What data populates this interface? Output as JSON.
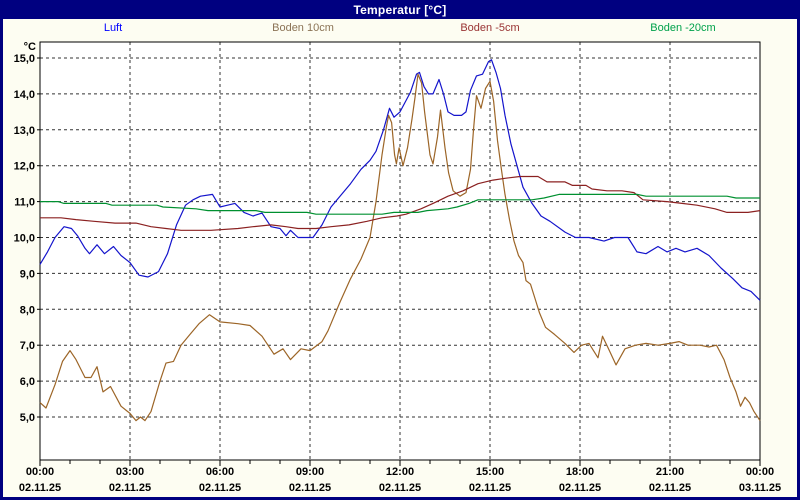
{
  "window": {
    "title": "Temperatur [°C]",
    "titlebar_bg": "#000080",
    "border_color": "#000080",
    "background": "#fdfdf2"
  },
  "chart_data": {
    "type": "line",
    "title": "Temperatur [°C]",
    "ylabel": "°C",
    "ylim": [
      3.8,
      15.45
    ],
    "xlim_hours": [
      0,
      24
    ],
    "grid": "dashed black, major every 1 °C and every 3 h, minor hourly ticks",
    "legend_position": "top",
    "y_ticks": [
      {
        "v": 15,
        "label": "15,0"
      },
      {
        "v": 14,
        "label": "14,0"
      },
      {
        "v": 13,
        "label": "13,0"
      },
      {
        "v": 12,
        "label": "12,0"
      },
      {
        "v": 11,
        "label": "11,0"
      },
      {
        "v": 10,
        "label": "10,0"
      },
      {
        "v": 9,
        "label": "9,0"
      },
      {
        "v": 8,
        "label": "8,0"
      },
      {
        "v": 7,
        "label": "7,0"
      },
      {
        "v": 6,
        "label": "6,0"
      },
      {
        "v": 5,
        "label": "5,0"
      }
    ],
    "x_ticks": [
      {
        "hour": 0,
        "time": "00:00",
        "date": "02.11.25"
      },
      {
        "hour": 3,
        "time": "03:00",
        "date": "02.11.25"
      },
      {
        "hour": 6,
        "time": "06:00",
        "date": "02.11.25"
      },
      {
        "hour": 9,
        "time": "09:00",
        "date": "02.11.25"
      },
      {
        "hour": 12,
        "time": "12:00",
        "date": "02.11.25"
      },
      {
        "hour": 15,
        "time": "15:00",
        "date": "02.11.25"
      },
      {
        "hour": 18,
        "time": "18:00",
        "date": "02.11.25"
      },
      {
        "hour": 21,
        "time": "21:00",
        "date": "02.11.25"
      },
      {
        "hour": 24,
        "time": "00:00",
        "date": "03.11.25"
      }
    ],
    "series": [
      {
        "name": "Luft",
        "color": "#1414cc",
        "label_color": "#0000ff",
        "points": [
          [
            0,
            9.25
          ],
          [
            0.25,
            9.6
          ],
          [
            0.5,
            10.0
          ],
          [
            0.8,
            10.3
          ],
          [
            1.05,
            10.25
          ],
          [
            1.25,
            10.05
          ],
          [
            1.5,
            9.7
          ],
          [
            1.65,
            9.55
          ],
          [
            1.9,
            9.8
          ],
          [
            2.15,
            9.55
          ],
          [
            2.45,
            9.75
          ],
          [
            2.7,
            9.5
          ],
          [
            3.0,
            9.3
          ],
          [
            3.3,
            8.95
          ],
          [
            3.6,
            8.9
          ],
          [
            3.95,
            9.05
          ],
          [
            4.25,
            9.55
          ],
          [
            4.55,
            10.35
          ],
          [
            4.85,
            10.9
          ],
          [
            5.1,
            11.05
          ],
          [
            5.35,
            11.15
          ],
          [
            5.75,
            11.2
          ],
          [
            6.0,
            10.85
          ],
          [
            6.25,
            10.9
          ],
          [
            6.5,
            10.95
          ],
          [
            6.8,
            10.7
          ],
          [
            7.1,
            10.6
          ],
          [
            7.4,
            10.68
          ],
          [
            7.7,
            10.3
          ],
          [
            8.0,
            10.25
          ],
          [
            8.2,
            10.05
          ],
          [
            8.35,
            10.2
          ],
          [
            8.6,
            10.0
          ],
          [
            9.1,
            10.0
          ],
          [
            9.4,
            10.35
          ],
          [
            9.7,
            10.85
          ],
          [
            10.0,
            11.15
          ],
          [
            10.35,
            11.5
          ],
          [
            10.7,
            11.9
          ],
          [
            11.0,
            12.15
          ],
          [
            11.2,
            12.4
          ],
          [
            11.45,
            13.0
          ],
          [
            11.65,
            13.6
          ],
          [
            11.8,
            13.35
          ],
          [
            12.0,
            13.5
          ],
          [
            12.35,
            14.05
          ],
          [
            12.55,
            14.55
          ],
          [
            12.65,
            14.6
          ],
          [
            12.8,
            14.2
          ],
          [
            12.95,
            14.0
          ],
          [
            13.1,
            14.0
          ],
          [
            13.3,
            14.4
          ],
          [
            13.45,
            14.0
          ],
          [
            13.6,
            13.5
          ],
          [
            13.8,
            13.4
          ],
          [
            14.05,
            13.4
          ],
          [
            14.2,
            13.5
          ],
          [
            14.35,
            14.1
          ],
          [
            14.55,
            14.5
          ],
          [
            14.75,
            14.55
          ],
          [
            14.95,
            14.9
          ],
          [
            15.05,
            14.95
          ],
          [
            15.2,
            14.6
          ],
          [
            15.35,
            14.15
          ],
          [
            15.5,
            13.4
          ],
          [
            15.7,
            12.6
          ],
          [
            15.9,
            12.0
          ],
          [
            16.1,
            11.4
          ],
          [
            16.4,
            10.95
          ],
          [
            16.7,
            10.6
          ],
          [
            17.0,
            10.45
          ],
          [
            17.5,
            10.15
          ],
          [
            17.85,
            10.0
          ],
          [
            18.3,
            10.0
          ],
          [
            18.8,
            9.9
          ],
          [
            19.15,
            10.0
          ],
          [
            19.6,
            10.0
          ],
          [
            19.9,
            9.6
          ],
          [
            20.2,
            9.55
          ],
          [
            20.6,
            9.75
          ],
          [
            20.9,
            9.6
          ],
          [
            21.2,
            9.7
          ],
          [
            21.5,
            9.6
          ],
          [
            21.9,
            9.7
          ],
          [
            22.3,
            9.5
          ],
          [
            22.7,
            9.15
          ],
          [
            23.1,
            8.85
          ],
          [
            23.4,
            8.6
          ],
          [
            23.7,
            8.5
          ],
          [
            24,
            8.25
          ]
        ]
      },
      {
        "name": "Boden 10cm",
        "color": "#9c6527",
        "label_color": "#8b7355",
        "points": [
          [
            0,
            5.4
          ],
          [
            0.2,
            5.25
          ],
          [
            0.5,
            5.9
          ],
          [
            0.75,
            6.55
          ],
          [
            1.0,
            6.85
          ],
          [
            1.2,
            6.6
          ],
          [
            1.5,
            6.1
          ],
          [
            1.7,
            6.1
          ],
          [
            1.9,
            6.4
          ],
          [
            2.1,
            5.7
          ],
          [
            2.35,
            5.85
          ],
          [
            2.7,
            5.3
          ],
          [
            3.0,
            5.1
          ],
          [
            3.2,
            4.9
          ],
          [
            3.35,
            5.0
          ],
          [
            3.5,
            4.9
          ],
          [
            3.7,
            5.15
          ],
          [
            4.0,
            6.0
          ],
          [
            4.2,
            6.5
          ],
          [
            4.45,
            6.55
          ],
          [
            4.7,
            7.0
          ],
          [
            5.0,
            7.3
          ],
          [
            5.3,
            7.6
          ],
          [
            5.65,
            7.85
          ],
          [
            6.0,
            7.65
          ],
          [
            6.6,
            7.6
          ],
          [
            7.0,
            7.55
          ],
          [
            7.4,
            7.25
          ],
          [
            7.8,
            6.75
          ],
          [
            8.1,
            6.9
          ],
          [
            8.35,
            6.6
          ],
          [
            8.7,
            6.9
          ],
          [
            9.0,
            6.85
          ],
          [
            9.4,
            7.1
          ],
          [
            9.6,
            7.4
          ],
          [
            10.0,
            8.2
          ],
          [
            10.35,
            8.85
          ],
          [
            10.7,
            9.4
          ],
          [
            11.0,
            10.0
          ],
          [
            11.2,
            11.0
          ],
          [
            11.4,
            12.3
          ],
          [
            11.55,
            13.1
          ],
          [
            11.62,
            13.4
          ],
          [
            11.72,
            13.2
          ],
          [
            11.82,
            12.3
          ],
          [
            11.88,
            12.05
          ],
          [
            11.97,
            12.5
          ],
          [
            12.1,
            12.0
          ],
          [
            12.25,
            12.5
          ],
          [
            12.4,
            13.3
          ],
          [
            12.5,
            13.9
          ],
          [
            12.6,
            14.55
          ],
          [
            12.72,
            14.3
          ],
          [
            12.82,
            13.5
          ],
          [
            13.0,
            12.3
          ],
          [
            13.1,
            12.05
          ],
          [
            13.25,
            12.8
          ],
          [
            13.35,
            13.55
          ],
          [
            13.5,
            12.5
          ],
          [
            13.62,
            11.8
          ],
          [
            13.77,
            11.3
          ],
          [
            14.0,
            11.15
          ],
          [
            14.2,
            11.25
          ],
          [
            14.35,
            11.9
          ],
          [
            14.45,
            13.0
          ],
          [
            14.55,
            13.95
          ],
          [
            14.7,
            13.6
          ],
          [
            14.85,
            14.15
          ],
          [
            15.0,
            14.35
          ],
          [
            15.12,
            13.8
          ],
          [
            15.25,
            12.7
          ],
          [
            15.38,
            11.9
          ],
          [
            15.5,
            11.2
          ],
          [
            15.65,
            10.5
          ],
          [
            15.8,
            9.9
          ],
          [
            15.95,
            9.5
          ],
          [
            16.1,
            9.3
          ],
          [
            16.2,
            8.8
          ],
          [
            16.35,
            8.7
          ],
          [
            16.5,
            8.3
          ],
          [
            16.65,
            7.9
          ],
          [
            16.85,
            7.5
          ],
          [
            17.15,
            7.3
          ],
          [
            17.5,
            7.05
          ],
          [
            17.8,
            6.8
          ],
          [
            18.05,
            7.0
          ],
          [
            18.3,
            7.05
          ],
          [
            18.6,
            6.65
          ],
          [
            18.75,
            7.25
          ],
          [
            18.95,
            6.9
          ],
          [
            19.2,
            6.45
          ],
          [
            19.5,
            6.9
          ],
          [
            19.85,
            7.0
          ],
          [
            20.2,
            7.05
          ],
          [
            20.6,
            7.0
          ],
          [
            21.0,
            7.05
          ],
          [
            21.3,
            7.1
          ],
          [
            21.6,
            7.0
          ],
          [
            22.0,
            7.0
          ],
          [
            22.3,
            6.95
          ],
          [
            22.55,
            7.0
          ],
          [
            22.8,
            6.6
          ],
          [
            23.0,
            6.1
          ],
          [
            23.2,
            5.7
          ],
          [
            23.35,
            5.3
          ],
          [
            23.5,
            5.55
          ],
          [
            23.65,
            5.4
          ],
          [
            23.8,
            5.15
          ],
          [
            24,
            4.9
          ]
        ]
      },
      {
        "name": "Boden -5cm",
        "color": "#8b2121",
        "label_color": "#993333",
        "points": [
          [
            0,
            10.55
          ],
          [
            0.7,
            10.55
          ],
          [
            1.2,
            10.5
          ],
          [
            1.8,
            10.45
          ],
          [
            2.5,
            10.4
          ],
          [
            3.2,
            10.4
          ],
          [
            3.7,
            10.3
          ],
          [
            4.2,
            10.25
          ],
          [
            4.7,
            10.2
          ],
          [
            5.7,
            10.2
          ],
          [
            6.6,
            10.25
          ],
          [
            7.1,
            10.3
          ],
          [
            7.7,
            10.35
          ],
          [
            8.2,
            10.3
          ],
          [
            8.6,
            10.25
          ],
          [
            9.2,
            10.25
          ],
          [
            9.7,
            10.3
          ],
          [
            10.3,
            10.35
          ],
          [
            10.9,
            10.45
          ],
          [
            11.4,
            10.55
          ],
          [
            11.9,
            10.6
          ],
          [
            12.2,
            10.65
          ],
          [
            12.7,
            10.8
          ],
          [
            13.1,
            10.95
          ],
          [
            13.6,
            11.15
          ],
          [
            14.1,
            11.3
          ],
          [
            14.6,
            11.5
          ],
          [
            15.1,
            11.6
          ],
          [
            15.5,
            11.65
          ],
          [
            16.0,
            11.7
          ],
          [
            16.6,
            11.7
          ],
          [
            16.9,
            11.55
          ],
          [
            17.5,
            11.55
          ],
          [
            17.75,
            11.45
          ],
          [
            18.2,
            11.45
          ],
          [
            18.4,
            11.35
          ],
          [
            18.9,
            11.3
          ],
          [
            19.4,
            11.3
          ],
          [
            19.8,
            11.25
          ],
          [
            20.1,
            11.05
          ],
          [
            20.9,
            11.0
          ],
          [
            21.4,
            10.95
          ],
          [
            21.9,
            10.9
          ],
          [
            22.5,
            10.8
          ],
          [
            22.9,
            10.7
          ],
          [
            23.6,
            10.7
          ],
          [
            24,
            10.75
          ]
        ]
      },
      {
        "name": "Boden -20cm",
        "color": "#009030",
        "label_color": "#00a14b",
        "points": [
          [
            0,
            11.0
          ],
          [
            0.6,
            11.0
          ],
          [
            0.8,
            10.95
          ],
          [
            2.2,
            10.95
          ],
          [
            2.4,
            10.9
          ],
          [
            3.9,
            10.9
          ],
          [
            4.1,
            10.85
          ],
          [
            5.2,
            10.8
          ],
          [
            5.6,
            10.75
          ],
          [
            7.2,
            10.75
          ],
          [
            7.5,
            10.7
          ],
          [
            8.9,
            10.7
          ],
          [
            9.2,
            10.65
          ],
          [
            11.4,
            10.65
          ],
          [
            11.8,
            10.7
          ],
          [
            12.6,
            10.7
          ],
          [
            12.9,
            10.75
          ],
          [
            13.6,
            10.8
          ],
          [
            13.9,
            10.85
          ],
          [
            14.3,
            10.95
          ],
          [
            14.6,
            11.05
          ],
          [
            16.4,
            11.05
          ],
          [
            16.8,
            11.1
          ],
          [
            17.3,
            11.2
          ],
          [
            19.9,
            11.2
          ],
          [
            20.2,
            11.15
          ],
          [
            22.9,
            11.15
          ],
          [
            23.2,
            11.1
          ],
          [
            24,
            11.1
          ]
        ]
      }
    ]
  }
}
